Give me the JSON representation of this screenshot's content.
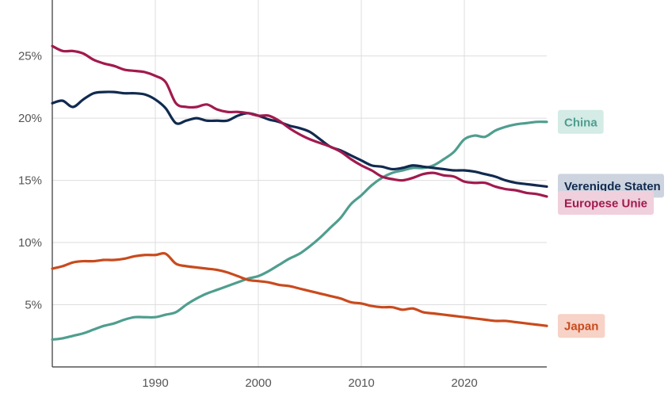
{
  "chart_data": {
    "type": "line",
    "title": "",
    "xlabel": "",
    "ylabel": "",
    "xlim": [
      1980,
      2028
    ],
    "ylim": [
      0,
      29.5
    ],
    "x_ticks": [
      1990,
      2000,
      2010,
      2020
    ],
    "x_tick_labels": [
      "1990",
      "2000",
      "2010",
      "2020"
    ],
    "y_ticks": [
      5,
      10,
      15,
      20,
      25
    ],
    "y_tick_labels": [
      "5%",
      "10%",
      "15%",
      "20%",
      "25%"
    ],
    "grid": true,
    "legend_placement": "right, inline labels at line ends",
    "x": [
      1980,
      1981,
      1982,
      1983,
      1984,
      1985,
      1986,
      1987,
      1988,
      1989,
      1990,
      1991,
      1992,
      1993,
      1994,
      1995,
      1996,
      1997,
      1998,
      1999,
      2000,
      2001,
      2002,
      2003,
      2004,
      2005,
      2006,
      2007,
      2008,
      2009,
      2010,
      2011,
      2012,
      2013,
      2014,
      2015,
      2016,
      2017,
      2018,
      2019,
      2020,
      2021,
      2022,
      2023,
      2024,
      2025,
      2026,
      2027,
      2028
    ],
    "series": [
      {
        "name": "China",
        "color": "#4f9e8f",
        "label_bg": "#d4ebe6",
        "values": [
          2.2,
          2.3,
          2.5,
          2.7,
          3.0,
          3.3,
          3.5,
          3.8,
          4.0,
          4.0,
          4.0,
          4.2,
          4.4,
          5.0,
          5.5,
          5.9,
          6.2,
          6.5,
          6.8,
          7.1,
          7.3,
          7.7,
          8.2,
          8.7,
          9.1,
          9.7,
          10.4,
          11.2,
          12.0,
          13.1,
          13.8,
          14.6,
          15.2,
          15.6,
          15.8,
          16.0,
          16.0,
          16.2,
          16.7,
          17.3,
          18.3,
          18.6,
          18.5,
          19.0,
          19.3,
          19.5,
          19.6,
          19.7,
          19.7
        ]
      },
      {
        "name": "Verenigde Staten",
        "color": "#112a4f",
        "label_bg": "#cdd4df",
        "values": [
          21.2,
          21.4,
          20.9,
          21.5,
          22.0,
          22.1,
          22.1,
          22.0,
          22.0,
          21.9,
          21.5,
          20.8,
          19.6,
          19.8,
          20.0,
          19.8,
          19.8,
          19.8,
          20.2,
          20.4,
          20.2,
          19.9,
          19.7,
          19.4,
          19.2,
          18.9,
          18.3,
          17.7,
          17.4,
          17.0,
          16.6,
          16.2,
          16.1,
          15.9,
          16.0,
          16.2,
          16.1,
          16.0,
          15.9,
          15.8,
          15.8,
          15.7,
          15.5,
          15.3,
          15.0,
          14.8,
          14.7,
          14.6,
          14.5
        ]
      },
      {
        "name": "Europese Unie",
        "color": "#a11a4e",
        "label_bg": "#f0d0dc",
        "values": [
          25.8,
          25.4,
          25.4,
          25.2,
          24.7,
          24.4,
          24.2,
          23.9,
          23.8,
          23.7,
          23.4,
          22.9,
          21.2,
          20.9,
          20.9,
          21.1,
          20.7,
          20.5,
          20.5,
          20.4,
          20.2,
          20.2,
          19.8,
          19.2,
          18.7,
          18.3,
          18.0,
          17.7,
          17.3,
          16.7,
          16.2,
          15.8,
          15.3,
          15.1,
          15.0,
          15.2,
          15.5,
          15.6,
          15.4,
          15.3,
          14.9,
          14.8,
          14.8,
          14.5,
          14.3,
          14.2,
          14.0,
          13.9,
          13.7
        ]
      },
      {
        "name": "Japan",
        "color": "#c94a1d",
        "label_bg": "#f7d2c6",
        "values": [
          7.9,
          8.1,
          8.4,
          8.5,
          8.5,
          8.6,
          8.6,
          8.7,
          8.9,
          9.0,
          9.0,
          9.1,
          8.3,
          8.1,
          8.0,
          7.9,
          7.8,
          7.6,
          7.3,
          7.0,
          6.9,
          6.8,
          6.6,
          6.5,
          6.3,
          6.1,
          5.9,
          5.7,
          5.5,
          5.2,
          5.1,
          4.9,
          4.8,
          4.8,
          4.6,
          4.7,
          4.4,
          4.3,
          4.2,
          4.1,
          4.0,
          3.9,
          3.8,
          3.7,
          3.7,
          3.6,
          3.5,
          3.4,
          3.3
        ]
      }
    ]
  }
}
